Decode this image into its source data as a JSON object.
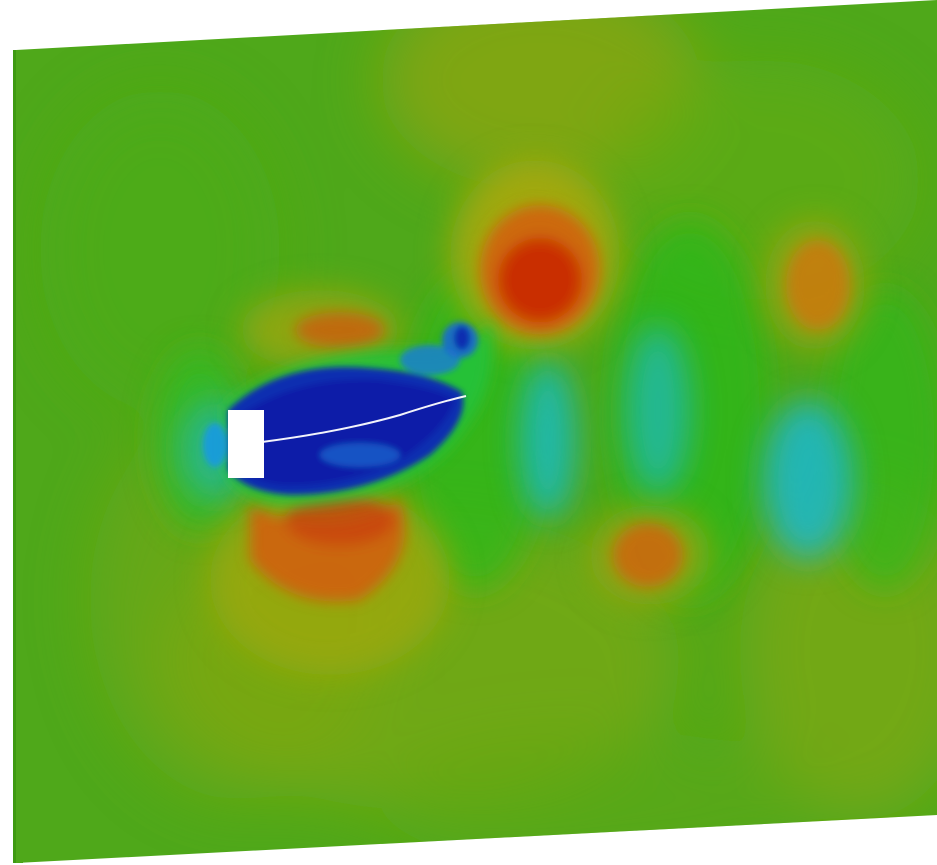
{
  "scene": {
    "colors": {
      "background": "#ffffff",
      "field_base": "#4fa81a",
      "slab_edge": "#3f9a12",
      "obstacle": "#ffffff",
      "colormap_low": "#0a1ba8",
      "colormap_mid_low": "#1fb7c4",
      "colormap_mid": "#2fb81a",
      "colormap_mid_high": "#9aa80a",
      "colormap_high": "#c92a06"
    }
  }
}
